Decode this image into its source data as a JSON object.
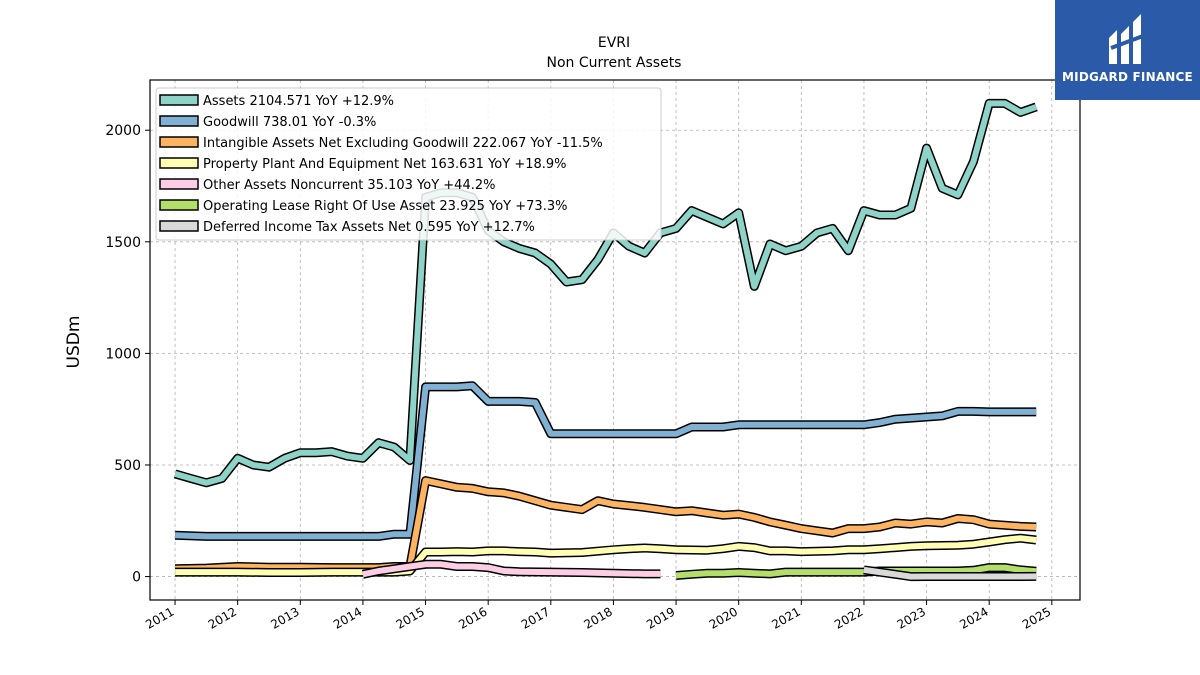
{
  "brand": {
    "name": "MIDGARD FINANCE",
    "colors": {
      "background": "#2b5aa8",
      "text": "#ffffff"
    }
  },
  "chart_data": {
    "type": "line",
    "title": "EVRI",
    "subtitle": "Non Current  Assets",
    "ylabel": "USDm",
    "xlabel": "",
    "xlim": [
      2010.6,
      2025.45
    ],
    "ylim": [
      -105,
      2225
    ],
    "x_ticks": [
      "2011",
      "2012",
      "2013",
      "2014",
      "2015",
      "2016",
      "2017",
      "2018",
      "2019",
      "2020",
      "2021",
      "2022",
      "2023",
      "2024",
      "2025"
    ],
    "y_ticks": [
      "0",
      "500",
      "1000",
      "1500",
      "2000"
    ],
    "grid": true,
    "legend_position": "top-left",
    "series": [
      {
        "name": "Assets  2104.571 YoY +12.9%",
        "color": "#8dd3c7",
        "points": [
          [
            2011.0,
            460
          ],
          [
            2011.25,
            440
          ],
          [
            2011.5,
            420
          ],
          [
            2011.75,
            440
          ],
          [
            2012.0,
            530
          ],
          [
            2012.25,
            500
          ],
          [
            2012.5,
            490
          ],
          [
            2012.75,
            530
          ],
          [
            2013.0,
            555
          ],
          [
            2013.25,
            555
          ],
          [
            2013.5,
            560
          ],
          [
            2013.75,
            540
          ],
          [
            2014.0,
            530
          ],
          [
            2014.25,
            600
          ],
          [
            2014.5,
            580
          ],
          [
            2014.75,
            520
          ],
          [
            2015.0,
            1700
          ],
          [
            2015.25,
            1720
          ],
          [
            2015.5,
            1720
          ],
          [
            2015.75,
            1700
          ],
          [
            2016.0,
            1550
          ],
          [
            2016.25,
            1500
          ],
          [
            2016.5,
            1470
          ],
          [
            2016.75,
            1450
          ],
          [
            2017.0,
            1400
          ],
          [
            2017.25,
            1320
          ],
          [
            2017.5,
            1330
          ],
          [
            2017.75,
            1420
          ],
          [
            2018.0,
            1540
          ],
          [
            2018.25,
            1480
          ],
          [
            2018.5,
            1450
          ],
          [
            2018.75,
            1540
          ],
          [
            2019.0,
            1560
          ],
          [
            2019.25,
            1640
          ],
          [
            2019.5,
            1610
          ],
          [
            2019.75,
            1580
          ],
          [
            2020.0,
            1630
          ],
          [
            2020.25,
            1300
          ],
          [
            2020.5,
            1490
          ],
          [
            2020.75,
            1460
          ],
          [
            2021.0,
            1480
          ],
          [
            2021.25,
            1540
          ],
          [
            2021.5,
            1560
          ],
          [
            2021.75,
            1460
          ],
          [
            2022.0,
            1640
          ],
          [
            2022.25,
            1620
          ],
          [
            2022.5,
            1620
          ],
          [
            2022.75,
            1650
          ],
          [
            2023.0,
            1920
          ],
          [
            2023.25,
            1740
          ],
          [
            2023.5,
            1710
          ],
          [
            2023.75,
            1860
          ],
          [
            2024.0,
            2120
          ],
          [
            2024.25,
            2120
          ],
          [
            2024.5,
            2080
          ],
          [
            2024.75,
            2104.571
          ]
        ]
      },
      {
        "name": "Goodwill  738.01 YoY -0.3%",
        "color": "#80b1d3",
        "points": [
          [
            2011.0,
            185
          ],
          [
            2011.5,
            180
          ],
          [
            2012.0,
            180
          ],
          [
            2012.5,
            180
          ],
          [
            2013.0,
            180
          ],
          [
            2013.5,
            180
          ],
          [
            2014.0,
            180
          ],
          [
            2014.25,
            180
          ],
          [
            2014.5,
            190
          ],
          [
            2014.75,
            190
          ],
          [
            2015.0,
            850
          ],
          [
            2015.25,
            850
          ],
          [
            2015.5,
            850
          ],
          [
            2015.75,
            855
          ],
          [
            2016.0,
            785
          ],
          [
            2016.25,
            785
          ],
          [
            2016.5,
            785
          ],
          [
            2016.75,
            780
          ],
          [
            2017.0,
            640
          ],
          [
            2017.5,
            640
          ],
          [
            2018.0,
            640
          ],
          [
            2018.5,
            640
          ],
          [
            2019.0,
            640
          ],
          [
            2019.25,
            670
          ],
          [
            2019.5,
            670
          ],
          [
            2019.75,
            670
          ],
          [
            2020.0,
            680
          ],
          [
            2020.5,
            680
          ],
          [
            2021.0,
            680
          ],
          [
            2021.5,
            680
          ],
          [
            2022.0,
            680
          ],
          [
            2022.25,
            690
          ],
          [
            2022.5,
            705
          ],
          [
            2022.75,
            710
          ],
          [
            2023.0,
            715
          ],
          [
            2023.25,
            720
          ],
          [
            2023.5,
            740
          ],
          [
            2023.75,
            740
          ],
          [
            2024.0,
            738
          ],
          [
            2024.25,
            738
          ],
          [
            2024.5,
            738
          ],
          [
            2024.75,
            738.01
          ]
        ]
      },
      {
        "name": "Intangible Assets Net Excluding Goodwill  222.067 YoY -11.5%",
        "color": "#fdb462",
        "points": [
          [
            2011.0,
            35
          ],
          [
            2011.5,
            38
          ],
          [
            2012.0,
            45
          ],
          [
            2012.5,
            42
          ],
          [
            2013.0,
            42
          ],
          [
            2013.5,
            40
          ],
          [
            2014.0,
            40
          ],
          [
            2014.25,
            40
          ],
          [
            2014.5,
            45
          ],
          [
            2014.75,
            45
          ],
          [
            2015.0,
            430
          ],
          [
            2015.25,
            415
          ],
          [
            2015.5,
            400
          ],
          [
            2015.75,
            395
          ],
          [
            2016.0,
            380
          ],
          [
            2016.25,
            375
          ],
          [
            2016.5,
            360
          ],
          [
            2016.75,
            340
          ],
          [
            2017.0,
            320
          ],
          [
            2017.25,
            310
          ],
          [
            2017.5,
            300
          ],
          [
            2017.75,
            340
          ],
          [
            2018.0,
            325
          ],
          [
            2018.25,
            318
          ],
          [
            2018.5,
            310
          ],
          [
            2018.75,
            300
          ],
          [
            2019.0,
            290
          ],
          [
            2019.25,
            295
          ],
          [
            2019.5,
            285
          ],
          [
            2019.75,
            275
          ],
          [
            2020.0,
            280
          ],
          [
            2020.25,
            265
          ],
          [
            2020.5,
            245
          ],
          [
            2020.75,
            230
          ],
          [
            2021.0,
            215
          ],
          [
            2021.25,
            205
          ],
          [
            2021.5,
            195
          ],
          [
            2021.75,
            215
          ],
          [
            2022.0,
            215
          ],
          [
            2022.25,
            222
          ],
          [
            2022.5,
            240
          ],
          [
            2022.75,
            235
          ],
          [
            2023.0,
            245
          ],
          [
            2023.25,
            240
          ],
          [
            2023.5,
            260
          ],
          [
            2023.75,
            255
          ],
          [
            2024.0,
            235
          ],
          [
            2024.25,
            230
          ],
          [
            2024.5,
            225
          ],
          [
            2024.75,
            222.067
          ]
        ]
      },
      {
        "name": "Property Plant And Equipment Net  163.631 YoY +18.9%",
        "color": "#ffffb3",
        "points": [
          [
            2011.0,
            20
          ],
          [
            2011.5,
            20
          ],
          [
            2012.0,
            20
          ],
          [
            2012.5,
            18
          ],
          [
            2013.0,
            18
          ],
          [
            2013.5,
            20
          ],
          [
            2014.0,
            20
          ],
          [
            2014.5,
            20
          ],
          [
            2014.75,
            25
          ],
          [
            2015.0,
            110
          ],
          [
            2015.25,
            110
          ],
          [
            2015.5,
            112
          ],
          [
            2015.75,
            110
          ],
          [
            2016.0,
            115
          ],
          [
            2016.25,
            115
          ],
          [
            2016.5,
            112
          ],
          [
            2016.75,
            110
          ],
          [
            2017.0,
            105
          ],
          [
            2017.5,
            108
          ],
          [
            2018.0,
            120
          ],
          [
            2018.25,
            125
          ],
          [
            2018.5,
            128
          ],
          [
            2018.75,
            125
          ],
          [
            2019.0,
            120
          ],
          [
            2019.5,
            118
          ],
          [
            2019.75,
            125
          ],
          [
            2020.0,
            135
          ],
          [
            2020.25,
            130
          ],
          [
            2020.5,
            115
          ],
          [
            2020.75,
            115
          ],
          [
            2021.0,
            112
          ],
          [
            2021.5,
            115
          ],
          [
            2021.75,
            120
          ],
          [
            2022.0,
            120
          ],
          [
            2022.25,
            125
          ],
          [
            2022.5,
            130
          ],
          [
            2022.75,
            135
          ],
          [
            2023.0,
            138
          ],
          [
            2023.5,
            140
          ],
          [
            2023.75,
            145
          ],
          [
            2024.0,
            155
          ],
          [
            2024.25,
            165
          ],
          [
            2024.5,
            172
          ],
          [
            2024.75,
            163.631
          ]
        ]
      },
      {
        "name": "Other Assets Noncurrent  35.103 YoY +44.2%",
        "color": "#fccde5",
        "points": [
          [
            2014.0,
            10
          ],
          [
            2014.25,
            25
          ],
          [
            2014.5,
            35
          ],
          [
            2014.75,
            45
          ],
          [
            2015.0,
            55
          ],
          [
            2015.25,
            55
          ],
          [
            2015.5,
            45
          ],
          [
            2015.75,
            45
          ],
          [
            2016.0,
            40
          ],
          [
            2016.25,
            25
          ],
          [
            2016.5,
            22
          ],
          [
            2017.0,
            20
          ],
          [
            2017.5,
            18
          ],
          [
            2018.0,
            15
          ],
          [
            2018.5,
            12
          ],
          [
            2018.75,
            12
          ]
        ]
      },
      {
        "name": "Operating Lease Right Of Use Asset  23.925 YoY +73.3%",
        "color": "#b3de69",
        "points": [
          [
            2019.0,
            5
          ],
          [
            2019.25,
            10
          ],
          [
            2019.5,
            15
          ],
          [
            2019.75,
            15
          ],
          [
            2020.0,
            18
          ],
          [
            2020.25,
            15
          ],
          [
            2020.5,
            12
          ],
          [
            2020.75,
            20
          ],
          [
            2021.0,
            20
          ],
          [
            2021.5,
            20
          ],
          [
            2022.0,
            20
          ],
          [
            2022.25,
            25
          ],
          [
            2022.5,
            25
          ],
          [
            2022.75,
            25
          ],
          [
            2023.0,
            25
          ],
          [
            2023.5,
            25
          ],
          [
            2023.75,
            28
          ],
          [
            2024.0,
            40
          ],
          [
            2024.25,
            40
          ],
          [
            2024.5,
            30
          ],
          [
            2024.75,
            23.925
          ]
        ]
      },
      {
        "name": "Deferred Income Tax Assets Net  0.595 YoY +12.7%",
        "color": "#d9d9d9",
        "points": [
          [
            2022.0,
            30
          ],
          [
            2022.25,
            20
          ],
          [
            2022.5,
            10
          ],
          [
            2022.75,
            0
          ],
          [
            2023.0,
            0.5
          ],
          [
            2023.5,
            0.5
          ],
          [
            2024.0,
            0.5
          ],
          [
            2024.5,
            0.5
          ],
          [
            2024.75,
            0.595
          ]
        ]
      }
    ]
  }
}
